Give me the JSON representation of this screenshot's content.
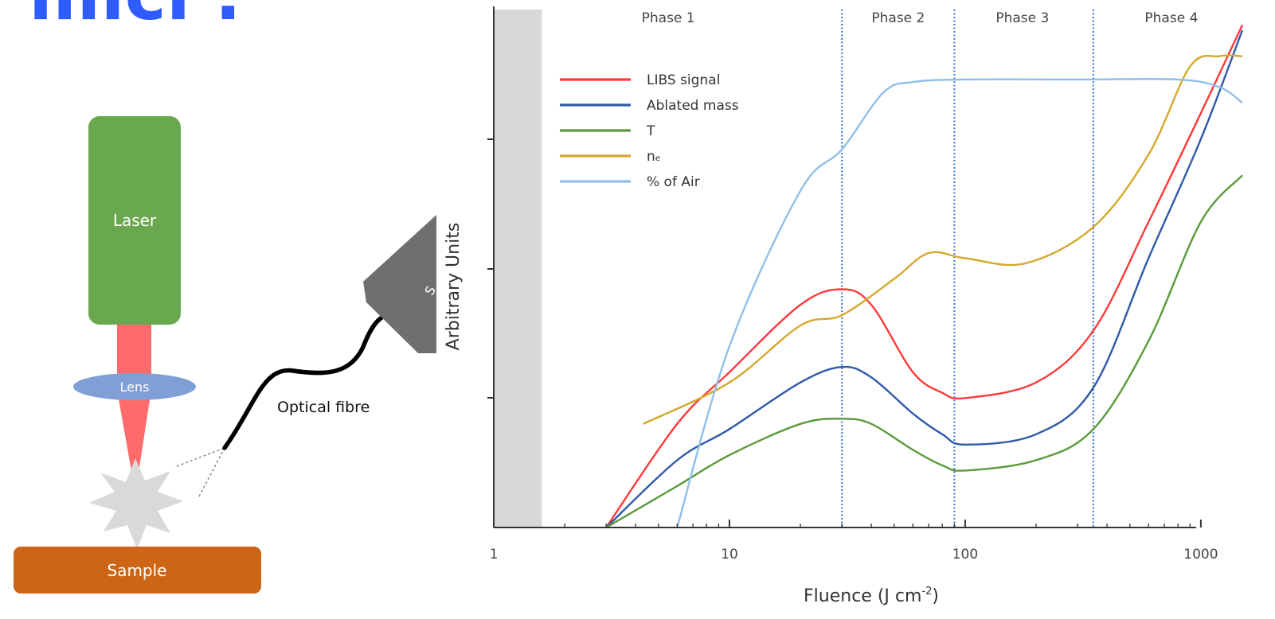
{
  "slide": {
    "title": "llllcl ."
  },
  "diagram": {
    "laser_label": "Laser",
    "lens_label": "Lens",
    "sample_label": "Sample",
    "fibre_label": "Optical fibre",
    "spectrometer_label": "S",
    "colors": {
      "laser": "#6aa84f",
      "beam": "#ff6b6b",
      "lens": "#7f9fd6",
      "plasma": "#d9d9d9",
      "sample": "#cc6616",
      "spectrometer": "#6f6f6f"
    }
  },
  "chart_data": {
    "type": "line",
    "xlabel": "Fluence (J cm",
    "xlabel_sup": "-2",
    "ylabel": "Arbitrary Units",
    "x_scale": "log",
    "xlim": [
      1,
      1500
    ],
    "ylim": [
      0,
      10
    ],
    "x_ticks": [
      1,
      10,
      100,
      1000
    ],
    "x_tick_labels": [
      "1",
      "10",
      "100",
      "1000"
    ],
    "grid": false,
    "legend": "top-left",
    "shaded_region": {
      "x_from": 1,
      "x_to": 1.6,
      "color": "#d8d8d8"
    },
    "phase_boundaries": [
      30,
      90,
      350
    ],
    "phases": [
      {
        "label": "Phase 1",
        "x_center": 5.5
      },
      {
        "label": "Phase 2",
        "x_center": 52
      },
      {
        "label": "Phase 3",
        "x_center": 175
      },
      {
        "label": "Phase 4",
        "x_center": 750
      }
    ],
    "series": [
      {
        "name": "LIBS signal",
        "color": "#ff3a3a",
        "points": [
          [
            3,
            0
          ],
          [
            6,
            2
          ],
          [
            10,
            3
          ],
          [
            20,
            4.3
          ],
          [
            30,
            4.6
          ],
          [
            40,
            4.3
          ],
          [
            60,
            3
          ],
          [
            80,
            2.6
          ],
          [
            100,
            2.5
          ],
          [
            200,
            2.8
          ],
          [
            350,
            3.8
          ],
          [
            600,
            5.9
          ],
          [
            1000,
            8
          ],
          [
            1500,
            9.7
          ]
        ]
      },
      {
        "name": "Ablated mass",
        "color": "#2f5aa8",
        "points": [
          [
            3,
            0
          ],
          [
            6,
            1.3
          ],
          [
            10,
            1.9
          ],
          [
            20,
            2.8
          ],
          [
            30,
            3.1
          ],
          [
            40,
            2.9
          ],
          [
            60,
            2.2
          ],
          [
            80,
            1.8
          ],
          [
            100,
            1.6
          ],
          [
            200,
            1.8
          ],
          [
            350,
            2.7
          ],
          [
            600,
            5.2
          ],
          [
            1000,
            7.5
          ],
          [
            1500,
            9.6
          ]
        ]
      },
      {
        "name": "T",
        "color": "#5a9a3a",
        "points": [
          [
            3,
            0
          ],
          [
            6,
            0.8
          ],
          [
            10,
            1.4
          ],
          [
            20,
            2
          ],
          [
            30,
            2.1
          ],
          [
            40,
            2
          ],
          [
            60,
            1.5
          ],
          [
            80,
            1.2
          ],
          [
            100,
            1.1
          ],
          [
            200,
            1.3
          ],
          [
            350,
            1.9
          ],
          [
            600,
            3.6
          ],
          [
            1000,
            5.9
          ],
          [
            1500,
            6.8
          ]
        ]
      },
      {
        "name": "nₑ",
        "color": "#d4a82a",
        "points": [
          [
            4.3,
            2
          ],
          [
            10,
            2.8
          ],
          [
            20,
            3.9
          ],
          [
            30,
            4.1
          ],
          [
            50,
            4.8
          ],
          [
            70,
            5.3
          ],
          [
            100,
            5.2
          ],
          [
            180,
            5.1
          ],
          [
            350,
            5.8
          ],
          [
            600,
            7.2
          ],
          [
            900,
            8.9
          ],
          [
            1200,
            9.1
          ],
          [
            1500,
            9.1
          ]
        ]
      },
      {
        "name": "% of Air",
        "color": "#8fbfe8",
        "points": [
          [
            6,
            0
          ],
          [
            10,
            3.5
          ],
          [
            20,
            6.5
          ],
          [
            30,
            7.3
          ],
          [
            45,
            8.4
          ],
          [
            60,
            8.6
          ],
          [
            100,
            8.65
          ],
          [
            300,
            8.65
          ],
          [
            800,
            8.65
          ],
          [
            1200,
            8.5
          ],
          [
            1500,
            8.2
          ]
        ]
      }
    ]
  }
}
